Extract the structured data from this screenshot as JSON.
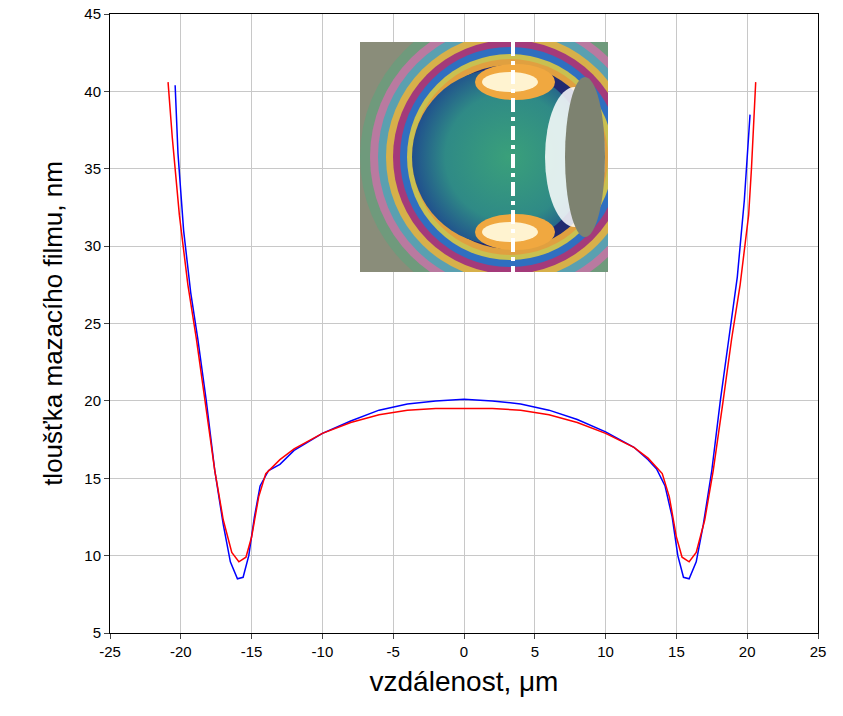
{
  "chart_data": {
    "type": "line",
    "x_label": "vzdálenost, μm",
    "y_label": "tloušťka mazacího filmu, nm",
    "xlim": [
      -25,
      25
    ],
    "xticks": [
      -25,
      -20,
      -15,
      -10,
      -5,
      0,
      5,
      10,
      15,
      20,
      25
    ],
    "ylim": [
      5,
      45
    ],
    "yticks": [
      5,
      10,
      15,
      20,
      25,
      30,
      35,
      40,
      45
    ],
    "grid": true,
    "series": [
      {
        "color": "#0000ff",
        "x": [
          -20.4,
          -20.2,
          -19.8,
          -19.3,
          -18.8,
          -18.2,
          -17.6,
          -17.0,
          -16.5,
          -16.0,
          -15.6,
          -15.2,
          -14.8,
          -14.4,
          -13.8,
          -13,
          -12,
          -10,
          -8,
          -6,
          -4,
          -2,
          0,
          2,
          4,
          6,
          8,
          10,
          12,
          13,
          13.6,
          14.2,
          14.7,
          15.1,
          15.5,
          15.9,
          16.4,
          16.9,
          17.5,
          18.1,
          18.7,
          19.3,
          19.8,
          20.2
        ],
        "values": [
          40.4,
          36,
          31,
          27,
          24,
          20,
          15.5,
          12,
          9.6,
          8.5,
          8.6,
          10,
          12.5,
          14.5,
          15.5,
          15.9,
          16.8,
          17.9,
          18.7,
          19.4,
          19.8,
          20.0,
          20.1,
          20.0,
          19.8,
          19.4,
          18.8,
          18.0,
          17.0,
          16.2,
          15.6,
          14.5,
          12.5,
          10,
          8.6,
          8.5,
          9.6,
          12,
          15.5,
          20,
          24,
          28,
          33,
          38.5
        ]
      },
      {
        "color": "#ff0000",
        "x": [
          -20.9,
          -20.6,
          -20.1,
          -19.5,
          -18.9,
          -18.3,
          -17.6,
          -17.0,
          -16.4,
          -15.9,
          -15.4,
          -15.0,
          -14.5,
          -14.0,
          -13,
          -12,
          -10,
          -8,
          -6,
          -4,
          -2,
          0,
          2,
          4,
          6,
          8,
          10,
          12,
          13,
          14.0,
          14.5,
          15.0,
          15.4,
          15.9,
          16.4,
          17.0,
          17.6,
          18.3,
          18.9,
          19.5,
          20.1,
          20.3,
          20.6
        ],
        "values": [
          40.6,
          37,
          32,
          27.5,
          24,
          20,
          15.5,
          12.3,
          10.2,
          9.6,
          9.9,
          11.2,
          13.8,
          15.3,
          16.2,
          16.9,
          17.9,
          18.6,
          19.1,
          19.4,
          19.5,
          19.5,
          19.5,
          19.4,
          19.1,
          18.6,
          17.9,
          17.0,
          16.3,
          15.3,
          13.8,
          11.2,
          9.9,
          9.6,
          10.2,
          12.3,
          15.5,
          20,
          24,
          27.5,
          32,
          35,
          40.6
        ]
      }
    ]
  }
}
